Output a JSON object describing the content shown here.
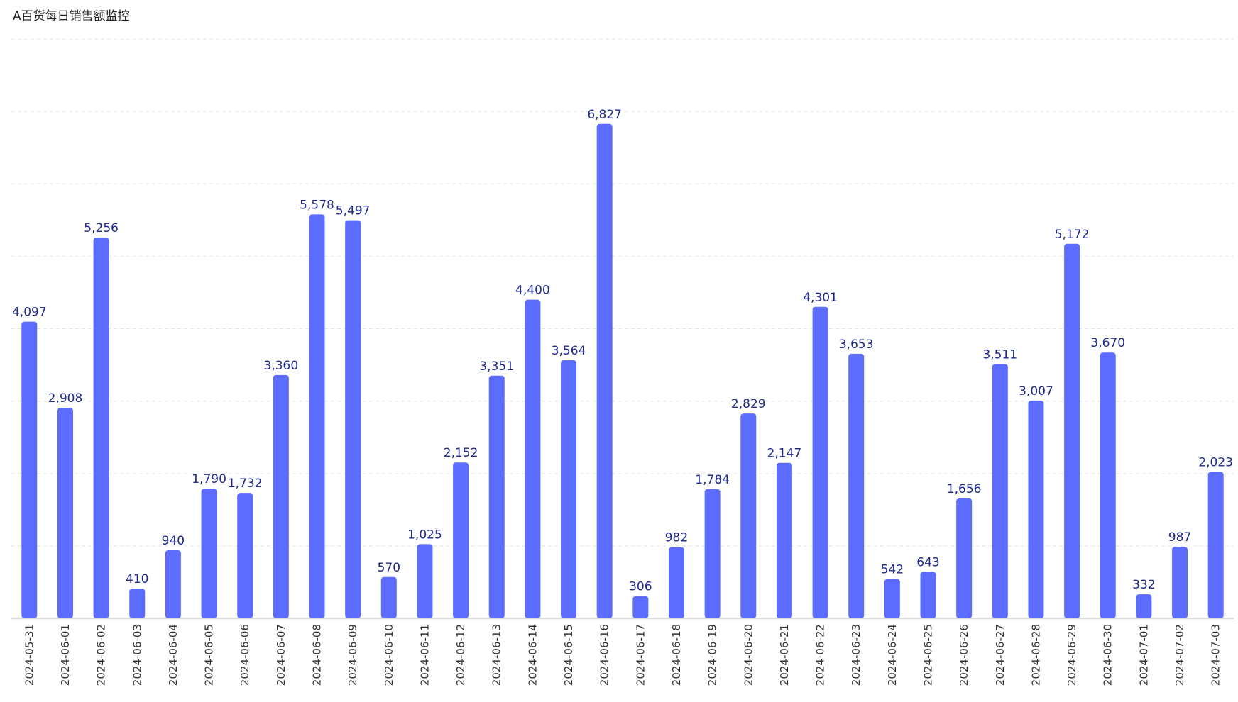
{
  "title": "A百货每日销售额监控",
  "colors": {
    "bar": "#5b6cff",
    "label": "#1f2a8c"
  },
  "chart_data": {
    "type": "bar",
    "title": "A百货每日销售额监控",
    "xlabel": "",
    "ylabel": "",
    "ylim": [
      0,
      8000
    ],
    "grid": true,
    "legend": "none",
    "categories": [
      "2024-05-31",
      "2024-06-01",
      "2024-06-02",
      "2024-06-03",
      "2024-06-04",
      "2024-06-05",
      "2024-06-06",
      "2024-06-07",
      "2024-06-08",
      "2024-06-09",
      "2024-06-10",
      "2024-06-11",
      "2024-06-12",
      "2024-06-13",
      "2024-06-14",
      "2024-06-15",
      "2024-06-16",
      "2024-06-17",
      "2024-06-18",
      "2024-06-19",
      "2024-06-20",
      "2024-06-21",
      "2024-06-22",
      "2024-06-23",
      "2024-06-24",
      "2024-06-25",
      "2024-06-26",
      "2024-06-27",
      "2024-06-28",
      "2024-06-29",
      "2024-06-30",
      "2024-07-01",
      "2024-07-02",
      "2024-07-03"
    ],
    "values": [
      4097,
      2908,
      5256,
      410,
      940,
      1790,
      1732,
      3360,
      5578,
      5497,
      570,
      1025,
      2152,
      3351,
      4400,
      3564,
      6827,
      306,
      982,
      1784,
      2829,
      2147,
      4301,
      3653,
      542,
      643,
      1656,
      3511,
      3007,
      5172,
      3670,
      332,
      987,
      2023
    ],
    "value_labels": [
      "4,097",
      "2,908",
      "5,256",
      "410",
      "940",
      "1,790",
      "1,732",
      "3,360",
      "5,578",
      "5,497",
      "570",
      "1,025",
      "2,152",
      "3,351",
      "4,400",
      "3,564",
      "6,827",
      "306",
      "982",
      "1,784",
      "2,829",
      "2,147",
      "4,301",
      "3,653",
      "542",
      "643",
      "1,656",
      "3,511",
      "3,007",
      "5,172",
      "3,670",
      "332",
      "987",
      "2,023"
    ]
  }
}
